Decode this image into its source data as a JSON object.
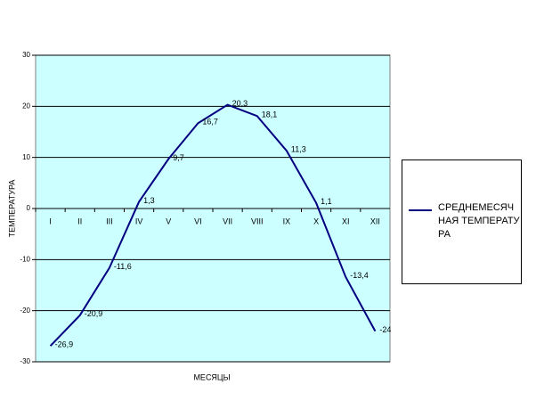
{
  "chart_data": {
    "type": "line",
    "x_label": "МЕСЯЦЫ",
    "y_label": "ТЕМПЕРАТУРА",
    "categories": [
      "I",
      "II",
      "III",
      "IV",
      "V",
      "VI",
      "VII",
      "VIII",
      "IX",
      "X",
      "XI",
      "XII"
    ],
    "series": [
      {
        "name": "СРЕДНЕМЕСЯЧНАЯ ТЕМПЕРАТУРА",
        "color": "#000080",
        "values": [
          -26.9,
          -20.9,
          -11.6,
          1.3,
          9.7,
          16.7,
          20.3,
          18.1,
          11.3,
          1.1,
          -13.4,
          -24
        ],
        "value_labels": [
          "-26,9",
          "-20,9",
          "-11,6",
          "1,3",
          "9,7",
          "16,7",
          "20,3",
          "18,1",
          "11,3",
          "1,1",
          "-13,4",
          "-24"
        ]
      }
    ],
    "ylim": [
      -30,
      30
    ],
    "yticks": [
      -30,
      -20,
      -10,
      0,
      10,
      20,
      30
    ],
    "grid": true,
    "plot_background": "#ccffff",
    "legend": "right"
  }
}
